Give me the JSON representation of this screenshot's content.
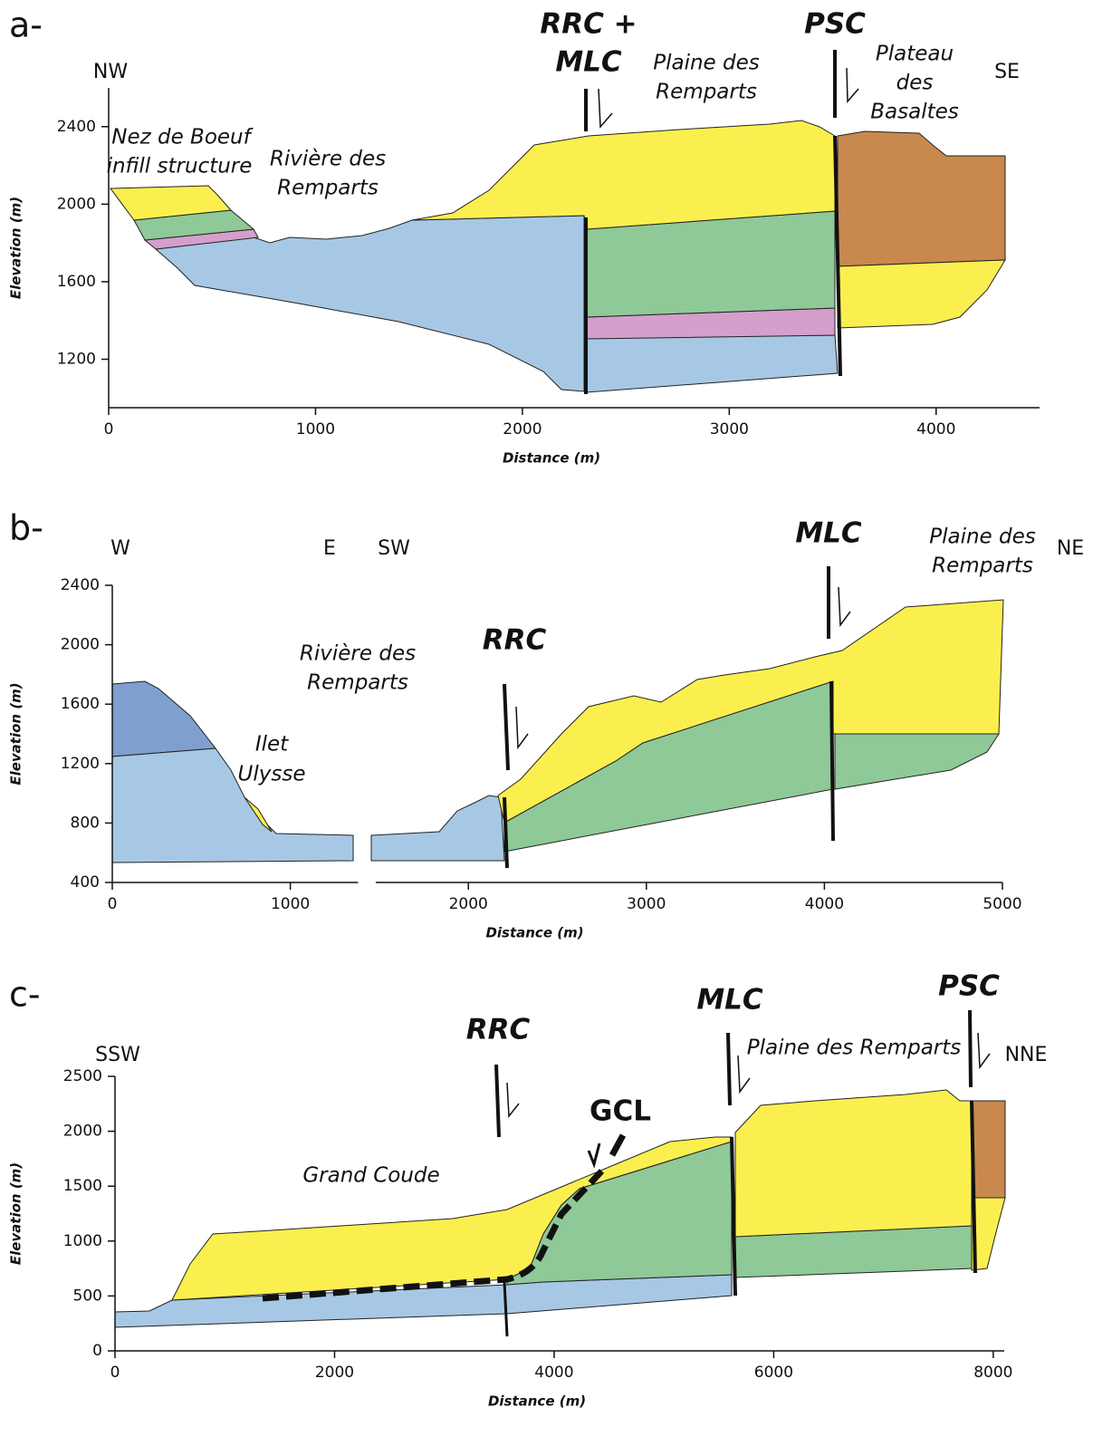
{
  "chart_data": [
    {
      "type": "cross-section",
      "panel_label": "a-",
      "xlabel": "Distance (m)",
      "ylabel": "Elevation (m)",
      "xlim": [
        0,
        4500
      ],
      "ylim": [
        950,
        2600
      ],
      "xticks": [
        0,
        1000,
        2000,
        3000,
        4000
      ],
      "yticks": [
        1200,
        1600,
        2000,
        2400
      ],
      "left_direction": "NW",
      "right_direction": "SE",
      "faults": [
        [
          "RRC +",
          "MLC"
        ],
        [
          "PSC"
        ]
      ],
      "places": [
        [
          "Nez de Boeuf",
          "infill structure"
        ],
        [
          "Rivière des",
          "Remparts"
        ],
        [
          "Plaine des",
          "Remparts"
        ],
        [
          "Plateau",
          "des",
          "Basaltes"
        ]
      ]
    },
    {
      "type": "cross-section",
      "panel_label": "b-",
      "xlabel": "Distance (m)",
      "ylabel": "Elevation (m)",
      "xlim": [
        0,
        5000
      ],
      "ylim": [
        400,
        2400
      ],
      "xticks": [
        0,
        1000,
        2000,
        3000,
        4000,
        5000
      ],
      "yticks": [
        400,
        800,
        1200,
        1600,
        2000,
        2400
      ],
      "x_axis_break": [
        1380,
        1480
      ],
      "left_direction": "W",
      "mid_directions": [
        "E",
        "SW"
      ],
      "right_direction": "NE",
      "faults": [
        [
          "RRC"
        ],
        [
          "MLC"
        ]
      ],
      "places": [
        [
          "Rivière des",
          "Remparts"
        ],
        [
          "Ilet",
          "Ulysse"
        ],
        [
          "Plaine des",
          "Remparts"
        ]
      ]
    },
    {
      "type": "cross-section",
      "panel_label": "c-",
      "xlabel": "Distance (m)",
      "ylabel": "Elevation (m)",
      "xlim": [
        0,
        8100
      ],
      "ylim": [
        0,
        2500
      ],
      "xticks": [
        0,
        2000,
        4000,
        6000,
        8000
      ],
      "yticks": [
        0,
        500,
        1000,
        1500,
        2000,
        2500
      ],
      "left_direction": "SSW",
      "right_direction": "NNE",
      "faults": [
        [
          "RRC"
        ],
        [
          "MLC"
        ],
        [
          "PSC"
        ],
        [
          "GCL"
        ]
      ],
      "places": [
        [
          "Grand Coude"
        ],
        [
          "Plaine des Remparts"
        ]
      ]
    }
  ]
}
